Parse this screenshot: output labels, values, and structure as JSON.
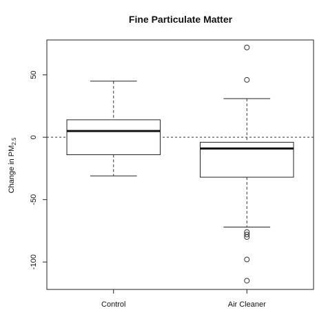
{
  "chart_data": {
    "type": "boxplot",
    "title": "Fine Particulate Matter",
    "ylabel": {
      "prefix": "Change in PM",
      "subscript": "2.5"
    },
    "xlabel": "",
    "ylim": [
      -122,
      78
    ],
    "yticks": [
      50,
      0,
      -50,
      -100
    ],
    "reference_line": 0,
    "grid": false,
    "legend": false,
    "categories": [
      "Control",
      "Air Cleaner"
    ],
    "series": [
      {
        "name": "Control",
        "whisker_high": 45,
        "q3": 14,
        "median": 5,
        "q1": -14,
        "whisker_low": -31,
        "outliers": []
      },
      {
        "name": "Air Cleaner",
        "whisker_high": 31,
        "q3": -4,
        "median": -9,
        "q1": -32,
        "whisker_low": -72,
        "outliers": [
          72,
          46,
          -76,
          -78,
          -80,
          -98,
          -115
        ]
      }
    ]
  },
  "colors": {
    "ink": "#111111",
    "box_fill": "#ffffff"
  }
}
